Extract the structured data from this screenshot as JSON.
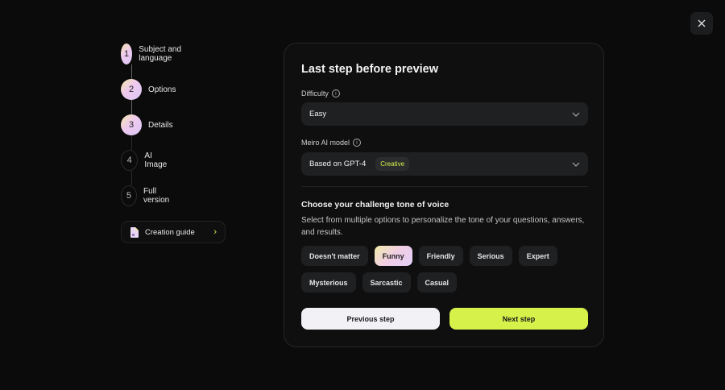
{
  "close": {
    "icon": "close-icon"
  },
  "steps": [
    {
      "num": "1",
      "label": "Subject and language",
      "done": true
    },
    {
      "num": "2",
      "label": "Options",
      "done": true
    },
    {
      "num": "3",
      "label": "Details",
      "done": true
    },
    {
      "num": "4",
      "label": "AI Image",
      "done": false
    },
    {
      "num": "5",
      "label": "Full version",
      "done": false
    }
  ],
  "guide": {
    "label": "Creation guide",
    "icon": "document-icon"
  },
  "card": {
    "title": "Last step before preview",
    "difficulty": {
      "label": "Difficulty",
      "value": "Easy"
    },
    "model": {
      "label": "Meiro AI model",
      "value": "Based on GPT-4",
      "badge": "Creative"
    },
    "tone": {
      "heading": "Choose your challenge tone of voice",
      "description": "Select from multiple options to personalize the tone of your questions, answers, and results.",
      "options": [
        "Doesn't matter",
        "Funny",
        "Friendly",
        "Serious",
        "Expert",
        "Mysterious",
        "Sarcastic",
        "Casual"
      ],
      "selected": "Funny"
    },
    "prev_label": "Previous step",
    "next_label": "Next step"
  },
  "colors": {
    "accent": "#d6f24a",
    "background": "#0b0b0b"
  }
}
